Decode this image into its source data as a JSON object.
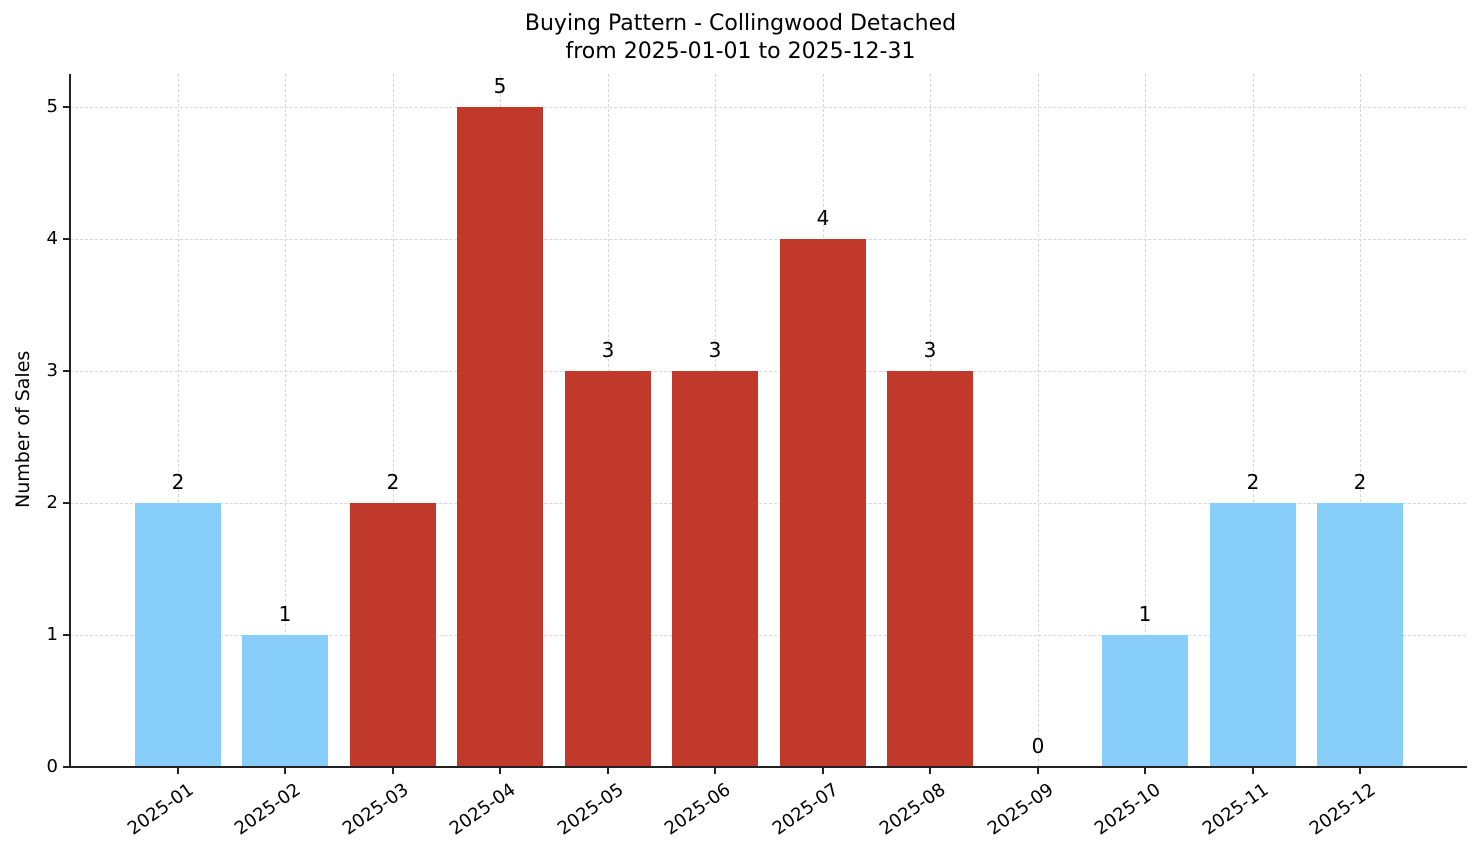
{
  "chart_data": {
    "type": "bar",
    "title": "Buying Pattern - Collingwood Detached",
    "subtitle": "from 2025-01-01 to 2025-12-31",
    "xlabel": "",
    "ylabel": "Number of Sales",
    "ylim": [
      0,
      5.25
    ],
    "yticks": [
      0,
      1,
      2,
      3,
      4,
      5
    ],
    "grid": true,
    "legend": null,
    "categories": [
      "2025-01",
      "2025-02",
      "2025-03",
      "2025-04",
      "2025-05",
      "2025-06",
      "2025-07",
      "2025-08",
      "2025-09",
      "2025-10",
      "2025-11",
      "2025-12"
    ],
    "values": [
      2,
      1,
      2,
      5,
      3,
      3,
      4,
      3,
      0,
      1,
      2,
      2
    ],
    "bar_colors": [
      "#87CEFA",
      "#87CEFA",
      "#C0392B",
      "#C0392B",
      "#C0392B",
      "#C0392B",
      "#C0392B",
      "#C0392B",
      "#C0392B",
      "#87CEFA",
      "#87CEFA",
      "#87CEFA"
    ],
    "data_labels": [
      "2",
      "1",
      "2",
      "5",
      "3",
      "3",
      "4",
      "3",
      "0",
      "1",
      "2",
      "2"
    ]
  },
  "colors": {
    "low_season": "#87CEFA",
    "high_season": "#C0392B",
    "axis": "#222222",
    "grid": "#d6d6d6"
  }
}
